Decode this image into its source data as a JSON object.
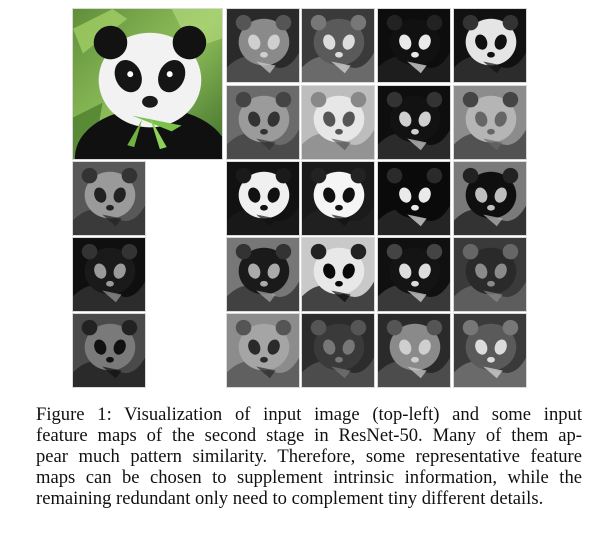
{
  "figure": {
    "input_image": {
      "icon": "panda-photo"
    },
    "grid": {
      "rows": 5,
      "cols": 5,
      "feature_map_count": 21
    }
  },
  "caption": {
    "lines": [
      "Figure 1: Visualization of input image (top-left) and some input",
      "feature maps of the second stage in ResNet-50. Many of them ap-",
      "pear much pattern similarity. Therefore, some representative feature",
      "maps can be chosen to supplement intrinsic information, while the",
      "remaining redundant only need to complement tiny different details."
    ]
  }
}
